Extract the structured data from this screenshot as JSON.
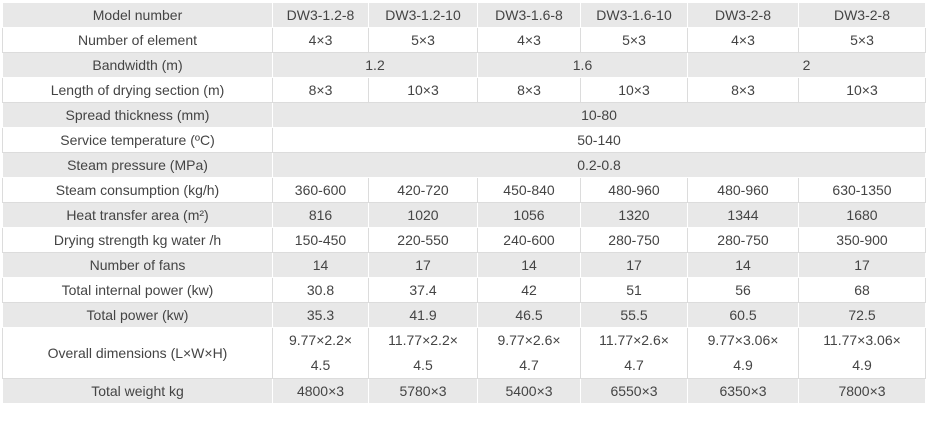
{
  "table": {
    "header": [
      "Model number",
      "DW3-1.2-8",
      "DW3-1.2-10",
      "DW3-1.6-8",
      "DW3-1.6-10",
      "DW3-2-8",
      "DW3-2-8"
    ],
    "rows": [
      {
        "label": "Number of element",
        "cells": [
          "4×3",
          "5×3",
          "4×3",
          "5×3",
          "4×3",
          "5×3"
        ]
      },
      {
        "label": "Bandwidth (m)",
        "cells": [
          "1.2",
          "1.6",
          "2"
        ]
      },
      {
        "label": "Length of drying section (m)",
        "cells": [
          "8×3",
          "10×3",
          "8×3",
          "10×3",
          "8×3",
          "10×3"
        ]
      },
      {
        "label": "Spread thickness (mm)",
        "cells": [
          "10-80"
        ]
      },
      {
        "label": "Service temperature (ºC)",
        "cells": [
          "50-140"
        ]
      },
      {
        "label": "Steam pressure (MPa)",
        "cells": [
          "0.2-0.8"
        ]
      },
      {
        "label": "Steam consumption (kg/h)",
        "cells": [
          "360-600",
          "420-720",
          "450-840",
          "480-960",
          "480-960",
          "630-1350"
        ]
      },
      {
        "label": "Heat transfer area (m²)",
        "cells": [
          "816",
          "1020",
          "1056",
          "1320",
          "1344",
          "1680"
        ]
      },
      {
        "label": "Drying strength kg water /h",
        "cells": [
          "150-450",
          "220-550",
          "240-600",
          "280-750",
          "280-750",
          "350-900"
        ]
      },
      {
        "label": "Number of fans",
        "cells": [
          "14",
          "17",
          "14",
          "17",
          "14",
          "17"
        ]
      },
      {
        "label": "Total internal power (kw)",
        "cells": [
          "30.8",
          "37.4",
          "42",
          "51",
          "56",
          "68"
        ]
      },
      {
        "label": "Total power (kw)",
        "cells": [
          "35.3",
          "41.9",
          "46.5",
          "55.5",
          "60.5",
          "72.5"
        ]
      },
      {
        "label": "Overall dimensions (L×W×H)",
        "cells": [
          [
            "9.77×2.2×",
            "4.5"
          ],
          [
            "11.77×2.2×",
            "4.5"
          ],
          [
            "9.77×2.6×",
            "4.7"
          ],
          [
            "11.77×2.6×",
            "4.7"
          ],
          [
            "9.77×3.06×",
            "4.9"
          ],
          [
            "11.77×3.06×",
            "4.9"
          ]
        ]
      },
      {
        "label": "Total weight kg",
        "cells": [
          "4800×3",
          "5780×3",
          "5400×3",
          "6550×3",
          "6350×3",
          "7800×3"
        ]
      }
    ]
  }
}
